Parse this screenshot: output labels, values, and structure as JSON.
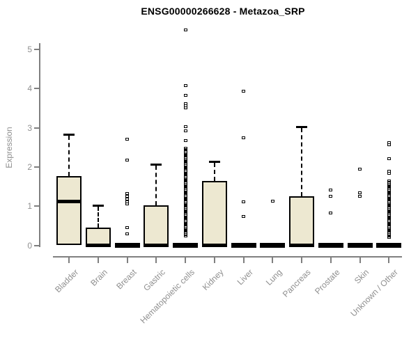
{
  "chart_data": {
    "type": "boxplot",
    "title": "ENSG00000266628 - Metazoa_SRP",
    "xlabel": "",
    "ylabel": "Expression",
    "ylim": [
      0,
      5.6
    ],
    "yticks": [
      0,
      1,
      2,
      3,
      4,
      5
    ],
    "grid": false,
    "legend": "none",
    "categories": [
      "Bladder",
      "Brain",
      "Breast",
      "Gastric",
      "Hematopoietic cells",
      "Kidney",
      "Liver",
      "Lung",
      "Pancreas",
      "Prostate",
      "Skin",
      "Unknown / Other"
    ],
    "series": [
      {
        "name": "Bladder",
        "q1": 0,
        "median": 1.12,
        "q3": 1.77,
        "whisker_low": 0,
        "whisker_high": 2.83,
        "outliers": []
      },
      {
        "name": "Brain",
        "q1": 0,
        "median": 0,
        "q3": 0.45,
        "whisker_low": 0,
        "whisker_high": 1.02,
        "outliers": []
      },
      {
        "name": "Breast",
        "q1": 0,
        "median": 0,
        "q3": 0,
        "whisker_low": 0,
        "whisker_high": 0,
        "outliers": [
          2.7,
          2.17,
          1.32,
          1.25,
          1.18,
          1.11,
          1.05,
          0.46,
          0.3
        ]
      },
      {
        "name": "Gastric",
        "q1": 0,
        "median": 0,
        "q3": 1.03,
        "whisker_low": 0,
        "whisker_high": 2.07,
        "outliers": []
      },
      {
        "name": "Hematopoietic cells",
        "q1": 0,
        "median": 0,
        "q3": 0,
        "whisker_low": 0,
        "whisker_high": 0,
        "outliers": [
          5.5,
          4.08,
          3.83,
          3.62,
          3.56,
          3.5,
          3.02,
          2.93,
          2.67,
          2.48,
          2.44,
          2.4,
          2.36,
          2.32,
          2.28,
          2.24,
          2.2,
          2.16,
          2.12,
          2.08,
          2.04,
          2.0,
          1.96,
          1.92,
          1.88,
          1.84,
          1.8,
          1.76,
          1.72,
          1.68,
          1.64,
          1.6,
          1.56,
          1.52,
          1.48,
          1.44,
          1.4,
          1.36,
          1.32,
          1.28,
          1.24,
          1.2,
          1.16,
          1.12,
          1.08,
          1.04,
          1.0,
          0.96,
          0.92,
          0.88,
          0.84,
          0.8,
          0.76,
          0.72,
          0.68,
          0.64,
          0.6,
          0.56,
          0.52,
          0.48,
          0.44,
          0.4,
          0.36,
          0.32,
          0.28,
          0.24
        ]
      },
      {
        "name": "Kidney",
        "q1": 0,
        "median": 0,
        "q3": 1.64,
        "whisker_low": 0,
        "whisker_high": 2.14,
        "outliers": []
      },
      {
        "name": "Liver",
        "q1": 0,
        "median": 0,
        "q3": 0,
        "whisker_low": 0,
        "whisker_high": 0,
        "outliers": [
          3.94,
          2.74,
          1.11,
          0.73
        ]
      },
      {
        "name": "Lung",
        "q1": 0,
        "median": 0,
        "q3": 0,
        "whisker_low": 0,
        "whisker_high": 0,
        "outliers": [
          1.13
        ]
      },
      {
        "name": "Pancreas",
        "q1": 0,
        "median": 0,
        "q3": 1.25,
        "whisker_low": 0,
        "whisker_high": 3.02,
        "outliers": []
      },
      {
        "name": "Prostate",
        "q1": 0,
        "median": 0,
        "q3": 0,
        "whisker_low": 0,
        "whisker_high": 0,
        "outliers": [
          1.41,
          1.26,
          0.83
        ]
      },
      {
        "name": "Skin",
        "q1": 0,
        "median": 0,
        "q3": 0,
        "whisker_low": 0,
        "whisker_high": 0,
        "outliers": [
          1.94,
          1.34,
          1.26
        ]
      },
      {
        "name": "Unknown / Other",
        "q1": 0,
        "median": 0,
        "q3": 0,
        "whisker_low": 0,
        "whisker_high": 0,
        "outliers": [
          2.62,
          2.56,
          2.21,
          1.9,
          1.84,
          1.64,
          1.6,
          1.56,
          1.52,
          1.48,
          1.44,
          1.4,
          1.36,
          1.32,
          1.28,
          1.24,
          1.2,
          1.16,
          1.12,
          1.08,
          1.04,
          1.0,
          0.96,
          0.92,
          0.88,
          0.84,
          0.8,
          0.76,
          0.72,
          0.68,
          0.64,
          0.6,
          0.56,
          0.52,
          0.48,
          0.44,
          0.4,
          0.36,
          0.32,
          0.28,
          0.24,
          0.2
        ]
      }
    ],
    "colors": {
      "box_fill": "#EDE8D1",
      "box_border": "#000000",
      "axis_line": "#7f7f7f",
      "tick_text": "#8f8f8f",
      "title_text": "#000000"
    }
  }
}
